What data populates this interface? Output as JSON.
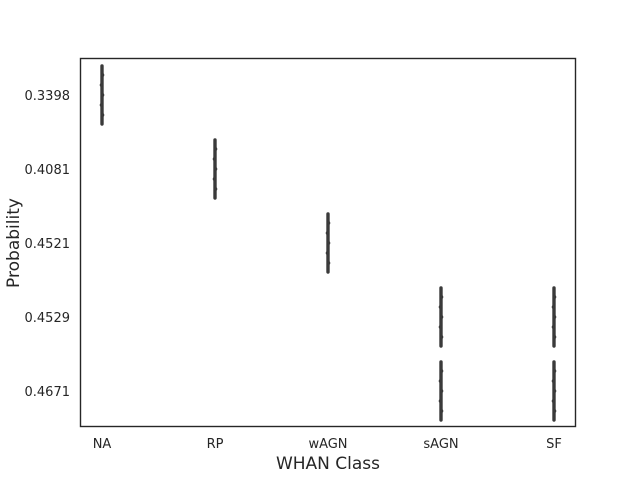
{
  "chart_data": {
    "type": "scatter",
    "title": "",
    "xlabel": "WHAN Class",
    "ylabel": "Probability",
    "x_categories": [
      "NA",
      "RP",
      "wAGN",
      "sAGN",
      "SF"
    ],
    "y_categories": [
      "0.3398",
      "0.4081",
      "0.4521",
      "0.4529",
      "0.4671"
    ],
    "y_inverted": true,
    "grid": false,
    "points": [
      {
        "x": "NA",
        "y": "0.3398"
      },
      {
        "x": "RP",
        "y": "0.4081"
      },
      {
        "x": "wAGN",
        "y": "0.4521"
      },
      {
        "x": "sAGN",
        "y": "0.4529"
      },
      {
        "x": "sAGN",
        "y": "0.4671"
      },
      {
        "x": "SF",
        "y": "0.4529"
      },
      {
        "x": "SF",
        "y": "0.4671"
      }
    ],
    "colors": {
      "marks": "#3a3a3a",
      "axes": "#262626",
      "background": "#ffffff"
    }
  }
}
